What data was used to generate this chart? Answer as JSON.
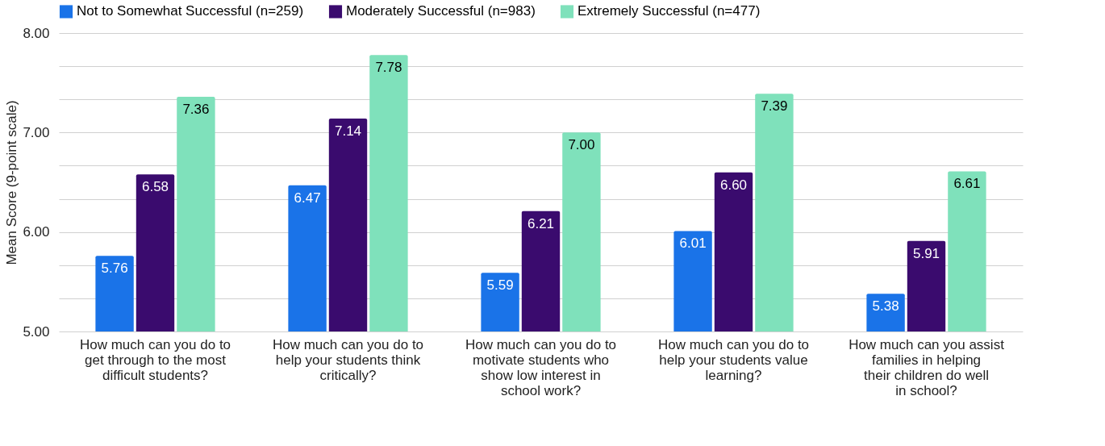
{
  "chart_data": {
    "type": "bar",
    "ylabel": "Mean Score (9-point scale)",
    "categories": [
      "How much can you do to get through to the most difficult students?",
      "How much can you do to help your students think critically?",
      "How much can you do to motivate students who show low interest in school work?",
      "How much can you do to help your students value learning?",
      "How much can you assist families in helping their children do well in school?"
    ],
    "series": [
      {
        "name": "Not to Somewhat Successful (n=259)",
        "color": "#1a73e8",
        "values": [
          5.76,
          6.47,
          5.59,
          6.01,
          5.38
        ],
        "value_labels": [
          "5.76",
          "6.47",
          "5.59",
          "6.01",
          "5.38"
        ]
      },
      {
        "name": "Moderately Successful (n=983)",
        "color": "#3a0b6e",
        "values": [
          6.58,
          7.14,
          6.21,
          6.6,
          5.91
        ],
        "value_labels": [
          "6.58",
          "7.14",
          "6.21",
          "6.60",
          "5.91"
        ]
      },
      {
        "name": "Extremely Successful (n=477)",
        "color": "#7fe1bb",
        "values": [
          7.36,
          7.78,
          7.0,
          7.39,
          6.61
        ],
        "value_labels": [
          "7.36",
          "7.78",
          "7.00",
          "7.39",
          "6.61"
        ]
      }
    ],
    "ylim": [
      5,
      8
    ],
    "yticks": [
      {
        "value": 5,
        "label": "5.00"
      },
      {
        "value": 5.333,
        "label": null
      },
      {
        "value": 5.667,
        "label": null
      },
      {
        "value": 6,
        "label": "6.00"
      },
      {
        "value": 6.333,
        "label": null
      },
      {
        "value": 6.667,
        "label": null
      },
      {
        "value": 7,
        "label": "7.00"
      },
      {
        "value": 7.333,
        "label": null
      },
      {
        "value": 7.667,
        "label": null
      },
      {
        "value": 8,
        "label": "8.00"
      }
    ],
    "grid": true,
    "legend": "top"
  }
}
